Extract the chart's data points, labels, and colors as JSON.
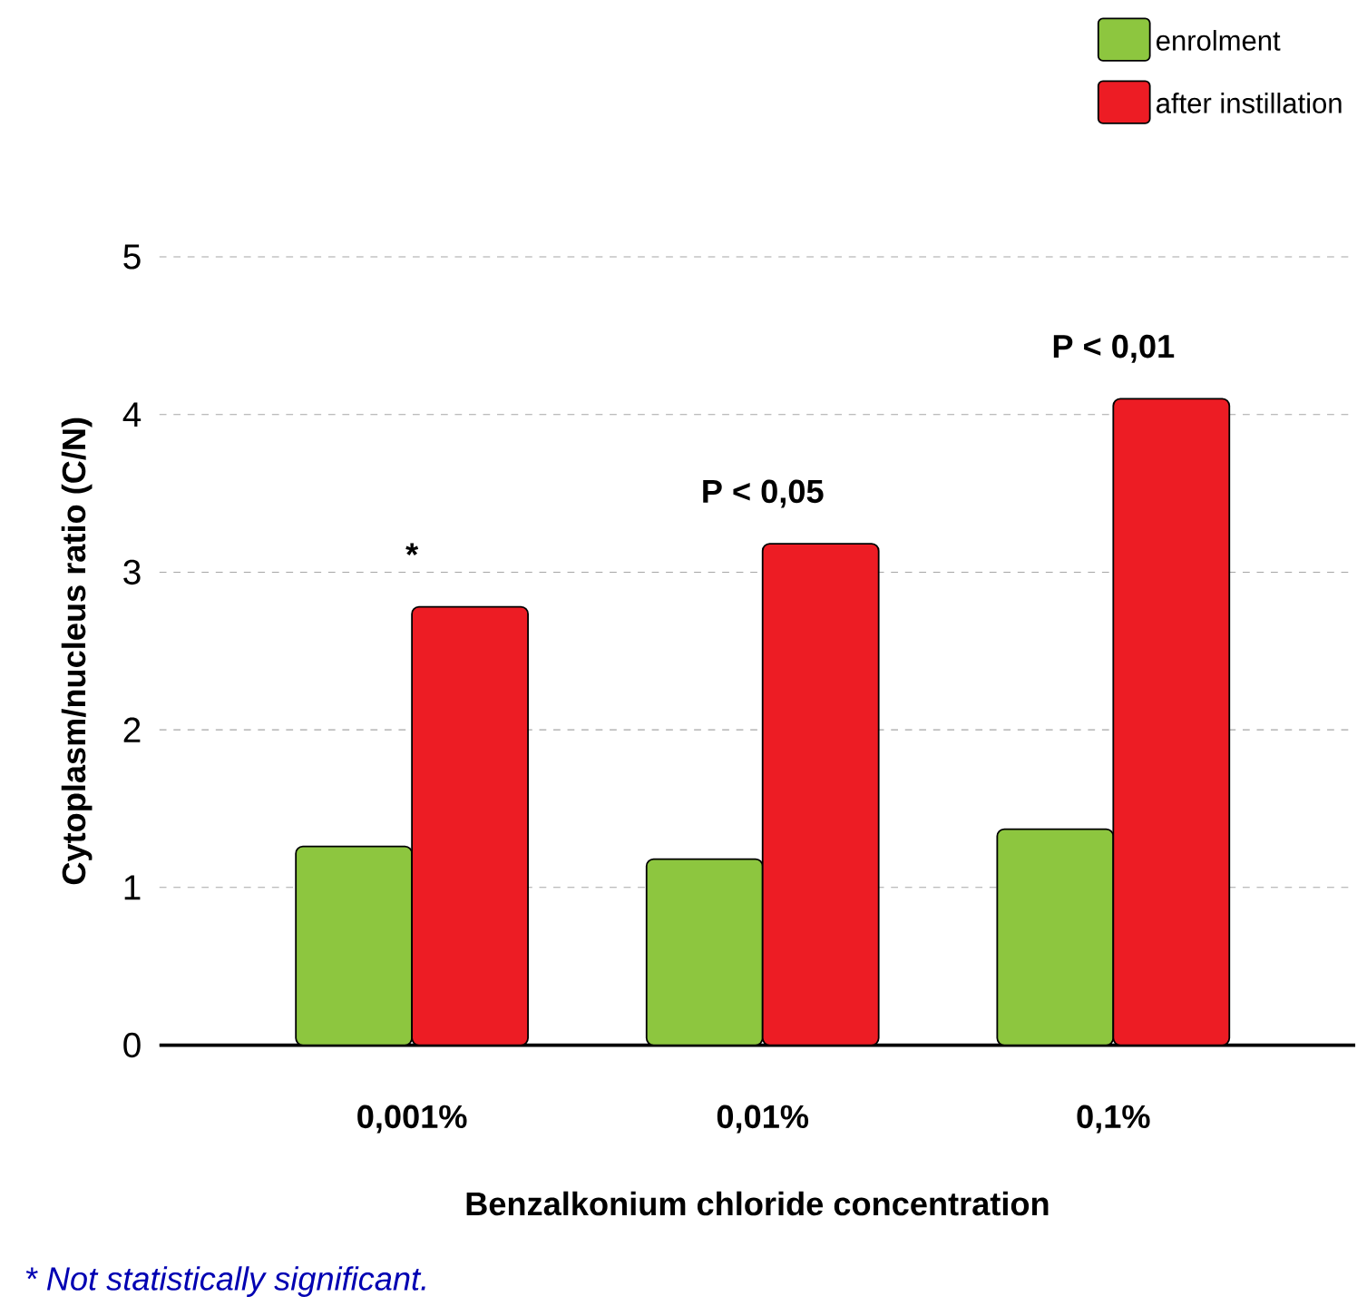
{
  "chart_data": {
    "type": "bar",
    "xlabel": "Benzalkonium chloride concentration",
    "ylabel": "Cytoplasm/nucleus ratio (C/N)",
    "categories": [
      "0,001%",
      "0,01%",
      "0,1%"
    ],
    "series": [
      {
        "name": "enrolment",
        "color": "#8dc63f",
        "values": [
          1.26,
          1.18,
          1.37
        ]
      },
      {
        "name": "after instillation",
        "color": "#ed1c24",
        "values": [
          2.78,
          3.18,
          4.1
        ]
      }
    ],
    "ylim": [
      0,
      5
    ],
    "yticks": [
      0,
      1,
      2,
      3,
      4,
      5
    ],
    "grid": "y",
    "legend": "top right",
    "annotations": [
      "*",
      "P < 0,05",
      "P < 0,01",
      "* Not statistically significant."
    ]
  }
}
